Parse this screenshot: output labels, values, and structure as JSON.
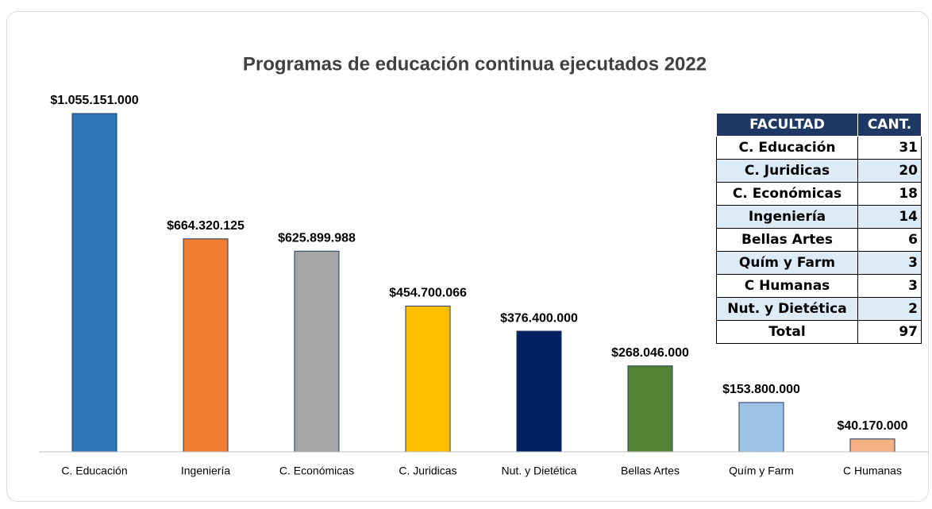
{
  "chart_data": {
    "type": "bar",
    "title": "Programas de educación continua ejecutados 2022",
    "categories": [
      "C. Educación",
      "Ingeniería",
      "C. Económicas",
      "C. Juridicas",
      "Nut. y Dietética",
      "Bellas Artes",
      "Quím y Farm",
      "C Humanas"
    ],
    "values": [
      1055151000,
      664320125,
      625899988,
      454700066,
      376400000,
      268046000,
      153800000,
      40170000
    ],
    "value_labels": [
      "$1.055.151.000",
      "$664.320.125",
      "$625.899.988",
      "$454.700.066",
      "$376.400.000",
      "$268.046.000",
      "$153.800.000",
      "$40.170.000"
    ],
    "colors": [
      "#2e75b6",
      "#ed7d31",
      "#a5a5a5",
      "#ffc000",
      "#002060",
      "#548235",
      "#9dc3e6",
      "#f4b183"
    ]
  },
  "table": {
    "header": [
      "FACULTAD",
      "CANT."
    ],
    "rows": [
      [
        "C. Educación",
        31
      ],
      [
        "C. Juridicas",
        20
      ],
      [
        "C. Económicas",
        18
      ],
      [
        "Ingeniería",
        14
      ],
      [
        "Bellas Artes",
        6
      ],
      [
        "Quím y Farm",
        3
      ],
      [
        "C Humanas",
        3
      ],
      [
        "Nut. y Dietética",
        2
      ],
      [
        "Total",
        97
      ]
    ]
  }
}
